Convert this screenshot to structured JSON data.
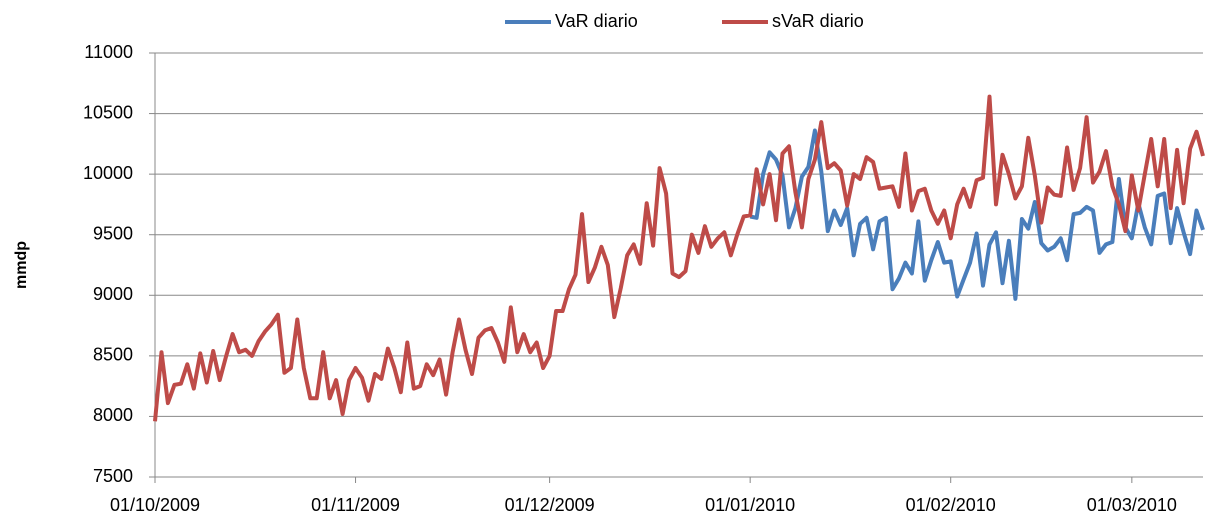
{
  "chart_data": {
    "type": "line",
    "y_label": "mmdp",
    "xlim": [
      "01/10/2009",
      "12/03/2010"
    ],
    "xticks": [
      "01/10/2009",
      "01/11/2009",
      "01/12/2009",
      "01/01/2010",
      "01/02/2010",
      "01/03/2010"
    ],
    "ylim": [
      7500,
      11000
    ],
    "yticks": [
      7500,
      8000,
      8500,
      9000,
      9500,
      10000,
      10500,
      11000
    ],
    "grid": true,
    "legend": "top",
    "x": [
      "01/10/2009",
      "02/10/2009",
      "03/10/2009",
      "04/10/2009",
      "05/10/2009",
      "06/10/2009",
      "07/10/2009",
      "08/10/2009",
      "09/10/2009",
      "10/10/2009",
      "11/10/2009",
      "12/10/2009",
      "13/10/2009",
      "14/10/2009",
      "15/10/2009",
      "16/10/2009",
      "17/10/2009",
      "18/10/2009",
      "19/10/2009",
      "20/10/2009",
      "21/10/2009",
      "22/10/2009",
      "23/10/2009",
      "24/10/2009",
      "25/10/2009",
      "26/10/2009",
      "27/10/2009",
      "28/10/2009",
      "29/10/2009",
      "30/10/2009",
      "31/10/2009",
      "01/11/2009",
      "02/11/2009",
      "03/11/2009",
      "04/11/2009",
      "05/11/2009",
      "06/11/2009",
      "07/11/2009",
      "08/11/2009",
      "09/11/2009",
      "10/11/2009",
      "11/11/2009",
      "12/11/2009",
      "13/11/2009",
      "14/11/2009",
      "15/11/2009",
      "16/11/2009",
      "17/11/2009",
      "18/11/2009",
      "19/11/2009",
      "20/11/2009",
      "21/11/2009",
      "22/11/2009",
      "23/11/2009",
      "24/11/2009",
      "25/11/2009",
      "26/11/2009",
      "27/11/2009",
      "28/11/2009",
      "29/11/2009",
      "30/11/2009",
      "01/12/2009",
      "02/12/2009",
      "03/12/2009",
      "04/12/2009",
      "05/12/2009",
      "06/12/2009",
      "07/12/2009",
      "08/12/2009",
      "09/12/2009",
      "10/12/2009",
      "11/12/2009",
      "12/12/2009",
      "13/12/2009",
      "14/12/2009",
      "15/12/2009",
      "16/12/2009",
      "17/12/2009",
      "18/12/2009",
      "19/12/2009",
      "20/12/2009",
      "21/12/2009",
      "22/12/2009",
      "23/12/2009",
      "24/12/2009",
      "25/12/2009",
      "26/12/2009",
      "27/12/2009",
      "28/12/2009",
      "29/12/2009",
      "30/12/2009",
      "31/12/2009",
      "01/01/2010",
      "02/01/2010",
      "03/01/2010",
      "04/01/2010",
      "05/01/2010",
      "06/01/2010",
      "07/01/2010",
      "08/01/2010",
      "09/01/2010",
      "10/01/2010",
      "11/01/2010",
      "12/01/2010",
      "13/01/2010",
      "14/01/2010",
      "15/01/2010",
      "16/01/2010",
      "17/01/2010",
      "18/01/2010",
      "19/01/2010",
      "20/01/2010",
      "21/01/2010",
      "22/01/2010",
      "23/01/2010",
      "24/01/2010",
      "25/01/2010",
      "26/01/2010",
      "27/01/2010",
      "28/01/2010",
      "29/01/2010",
      "30/01/2010",
      "31/01/2010",
      "01/02/2010",
      "02/02/2010",
      "03/02/2010",
      "04/02/2010",
      "05/02/2010",
      "06/02/2010",
      "07/02/2010",
      "08/02/2010",
      "09/02/2010",
      "10/02/2010",
      "11/02/2010",
      "12/02/2010",
      "13/02/2010",
      "14/02/2010",
      "15/02/2010",
      "16/02/2010",
      "17/02/2010",
      "18/02/2010",
      "19/02/2010",
      "20/02/2010",
      "21/02/2010",
      "22/02/2010",
      "23/02/2010",
      "24/02/2010",
      "25/02/2010",
      "26/02/2010",
      "27/02/2010",
      "28/02/2010",
      "01/03/2010",
      "02/03/2010",
      "03/03/2010",
      "04/03/2010",
      "05/03/2010",
      "06/03/2010",
      "07/03/2010",
      "08/03/2010",
      "09/03/2010",
      "10/03/2010",
      "11/03/2010",
      "12/03/2010"
    ],
    "series": [
      {
        "name": "VaR diario",
        "color": "#4a7ebb",
        "values": [
          null,
          null,
          null,
          null,
          null,
          null,
          null,
          null,
          null,
          null,
          null,
          null,
          null,
          null,
          null,
          null,
          null,
          null,
          null,
          null,
          null,
          null,
          null,
          null,
          null,
          null,
          null,
          null,
          null,
          null,
          null,
          null,
          null,
          null,
          null,
          null,
          null,
          null,
          null,
          null,
          null,
          null,
          null,
          null,
          null,
          null,
          null,
          null,
          null,
          null,
          null,
          null,
          null,
          null,
          null,
          null,
          null,
          null,
          null,
          null,
          null,
          null,
          null,
          null,
          null,
          null,
          null,
          null,
          null,
          null,
          null,
          null,
          null,
          null,
          null,
          null,
          null,
          null,
          null,
          null,
          null,
          null,
          null,
          null,
          null,
          null,
          null,
          null,
          null,
          null,
          null,
          null,
          9650,
          9640,
          10000,
          10180,
          10120,
          9990,
          9560,
          9720,
          9980,
          10060,
          10360,
          10020,
          9530,
          9700,
          9580,
          9720,
          9330,
          9590,
          9640,
          9380,
          9610,
          9640,
          9050,
          9140,
          9270,
          9180,
          9610,
          9120,
          9290,
          9440,
          9270,
          9280,
          8990,
          9130,
          9270,
          9510,
          9080,
          9420,
          9520,
          9100,
          9450,
          8970,
          9630,
          9550,
          9770,
          9430,
          9370,
          9400,
          9470,
          9290,
          9670,
          9680,
          9730,
          9700,
          9350,
          9420,
          9440,
          9960,
          9560,
          9470,
          9760,
          9560,
          9420,
          9820,
          9840,
          9430,
          9720,
          9520,
          9340,
          9700,
          9540
        ]
      },
      {
        "name": "sVaR diario",
        "color": "#be4b48",
        "values": [
          7960,
          8530,
          8110,
          8260,
          8270,
          8430,
          8230,
          8520,
          8280,
          8540,
          8300,
          8500,
          8680,
          8530,
          8550,
          8500,
          8620,
          8700,
          8760,
          8840,
          8360,
          8400,
          8800,
          8400,
          8150,
          8150,
          8530,
          8150,
          8300,
          8020,
          8300,
          8400,
          8320,
          8130,
          8350,
          8310,
          8560,
          8400,
          8200,
          8610,
          8230,
          8250,
          8430,
          8340,
          8470,
          8180,
          8530,
          8800,
          8550,
          8350,
          8650,
          8710,
          8730,
          8610,
          8450,
          8900,
          8530,
          8680,
          8530,
          8610,
          8400,
          8500,
          8870,
          8870,
          9050,
          9170,
          9670,
          9110,
          9230,
          9400,
          9250,
          8820,
          9060,
          9330,
          9420,
          9260,
          9760,
          9410,
          10050,
          9840,
          9180,
          9150,
          9200,
          9500,
          9350,
          9570,
          9400,
          9470,
          9520,
          9330,
          9500,
          9650,
          9660,
          10040,
          9750,
          10000,
          9620,
          10170,
          10230,
          9850,
          9560,
          9960,
          10120,
          10430,
          10050,
          10090,
          10030,
          9740,
          10000,
          9960,
          10140,
          10100,
          9880,
          9890,
          9900,
          9730,
          10170,
          9700,
          9860,
          9880,
          9700,
          9590,
          9700,
          9470,
          9750,
          9880,
          9730,
          9950,
          9970,
          10640,
          9750,
          10160,
          10000,
          9800,
          9900,
          10300,
          9990,
          9600,
          9890,
          9830,
          9820,
          10220,
          9870,
          10050,
          10470,
          9930,
          10020,
          10190,
          9900,
          9750,
          9530,
          9990,
          9700,
          10000,
          10290,
          9900,
          10290,
          9720,
          10200,
          9760,
          10210,
          10350,
          10150
        ]
      }
    ]
  }
}
